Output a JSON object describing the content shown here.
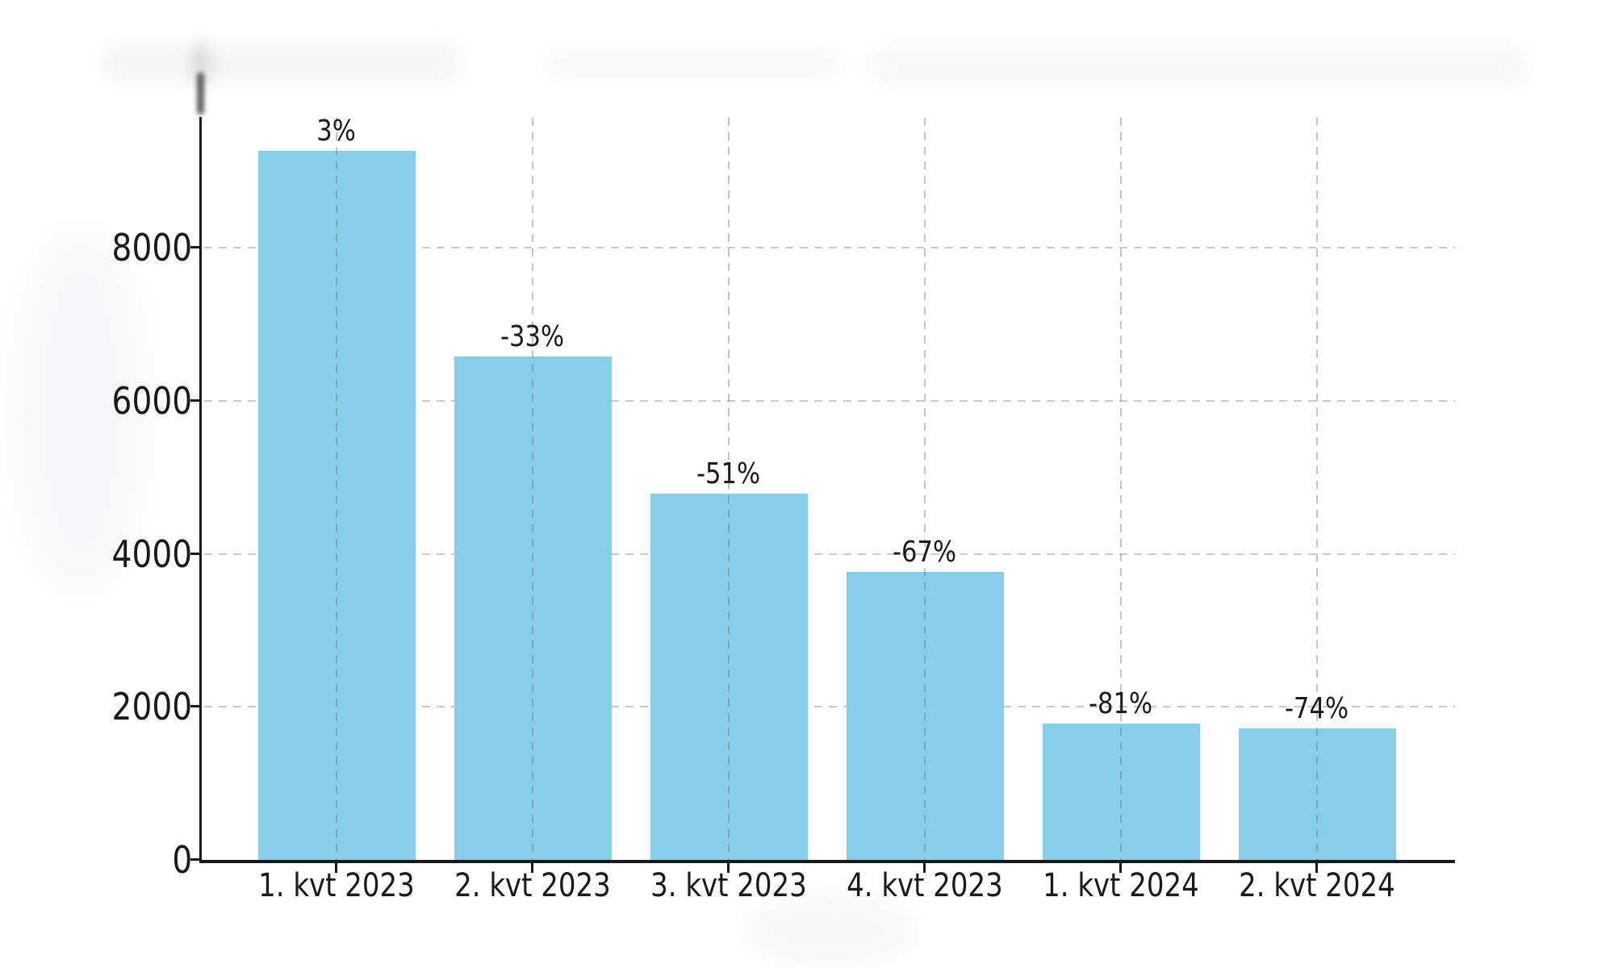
{
  "chart_data": {
    "type": "bar",
    "categories": [
      "1. kvt 2023",
      "2. kvt 2023",
      "3. kvt 2023",
      "4. kvt 2023",
      "1. kvt 2024",
      "2. kvt 2024"
    ],
    "values": [
      9260,
      6580,
      4780,
      3760,
      1780,
      1720
    ],
    "bar_labels": [
      "3%",
      "-33%",
      "-51%",
      "-67%",
      "-81%",
      "-74%"
    ],
    "yticks": [
      0,
      2000,
      4000,
      6000,
      8000
    ],
    "ylim": [
      0,
      9700
    ],
    "title": "",
    "xlabel": "",
    "ylabel": "",
    "grid": {
      "horizontal": true,
      "vertical": true,
      "style": "dashed"
    },
    "legend_position": "none",
    "colors": {
      "bar": "#87CEEB",
      "axis": "#1a1a1a",
      "grid": "#c9c9c9",
      "text": "#1a1a1a",
      "background": "#ffffff"
    }
  }
}
